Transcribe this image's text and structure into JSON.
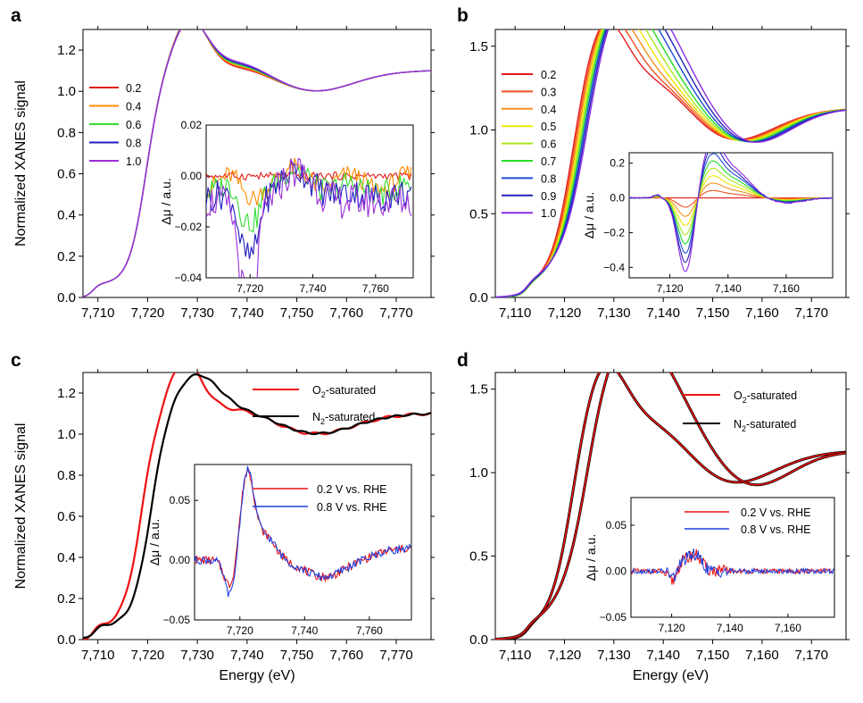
{
  "chart_data": [
    {
      "type": "line",
      "panel": "a",
      "xlabel": "",
      "ylabel": "Normalized XANES signal",
      "xlim": [
        7707,
        7777
      ],
      "ylim": [
        0,
        1.3
      ],
      "xticks": [
        7710,
        7720,
        7730,
        7740,
        7750,
        7760,
        7770
      ],
      "xtick_labels": [
        "7,710",
        "7,720",
        "7,730",
        "7,740",
        "7,750",
        "7,760",
        "7,770"
      ],
      "yticks": [
        0.0,
        0.2,
        0.4,
        0.6,
        0.8,
        1.0,
        1.2
      ],
      "ytick_labels": [
        "0.0",
        "0.2",
        "0.4",
        "0.6",
        "0.8",
        "1.0",
        "1.2"
      ],
      "legend_position": "left",
      "series": [
        {
          "name": "0.2",
          "color": "#e41a1c",
          "variant": 0
        },
        {
          "name": "0.4",
          "color": "#ff8c00",
          "variant": 0.25
        },
        {
          "name": "0.6",
          "color": "#33dd33",
          "variant": 0.5
        },
        {
          "name": "0.8",
          "color": "#1f1fbf",
          "variant": 0.75
        },
        {
          "name": "1.0",
          "color": "#9b30d9",
          "variant": 1
        }
      ],
      "inset": {
        "ylabel": "Δμ / a.u.",
        "xlim": [
          7706,
          7772
        ],
        "ylim": [
          -0.04,
          0.02
        ],
        "xticks": [
          7720,
          7740,
          7760
        ],
        "xtick_labels": [
          "7,720",
          "7,740",
          "7,760"
        ],
        "yticks": [
          -0.04,
          -0.02,
          0.0,
          0.02
        ],
        "ytick_labels": [
          "−0.04",
          "−0.02",
          "0.00",
          "0.02"
        ]
      }
    },
    {
      "type": "line",
      "panel": "b",
      "xlabel": "",
      "ylabel": "",
      "xlim": [
        7106,
        7177
      ],
      "ylim": [
        0,
        1.6
      ],
      "xticks": [
        7110,
        7120,
        7130,
        7140,
        7150,
        7160,
        7170
      ],
      "xtick_labels": [
        "7,110",
        "7,120",
        "7,130",
        "7,140",
        "7,150",
        "7,160",
        "7,170"
      ],
      "yticks": [
        0.0,
        0.5,
        1.0,
        1.5
      ],
      "ytick_labels": [
        "0.0",
        "0.5",
        "1.0",
        "1.5"
      ],
      "legend_position": "left",
      "series": [
        {
          "name": "0.2",
          "color": "#e41a1c",
          "variant": 0
        },
        {
          "name": "0.3",
          "color": "#f0501e",
          "variant": 0.125
        },
        {
          "name": "0.4",
          "color": "#f5901c",
          "variant": 0.25
        },
        {
          "name": "0.5",
          "color": "#f2e600",
          "variant": 0.375
        },
        {
          "name": "0.6",
          "color": "#a8e81e",
          "variant": 0.5
        },
        {
          "name": "0.7",
          "color": "#22dd22",
          "variant": 0.625
        },
        {
          "name": "0.8",
          "color": "#1d4bd6",
          "variant": 0.75
        },
        {
          "name": "0.9",
          "color": "#2323b8",
          "variant": 0.875
        },
        {
          "name": "1.0",
          "color": "#8a2be2",
          "variant": 1
        }
      ],
      "inset": {
        "ylabel": "Δμ / a.u.",
        "xlim": [
          7106,
          7176
        ],
        "ylim": [
          -0.46,
          0.26
        ],
        "xticks": [
          7120,
          7140,
          7160
        ],
        "xtick_labels": [
          "7,120",
          "7,140",
          "7,160"
        ],
        "yticks": [
          -0.4,
          -0.2,
          0.0,
          0.2
        ],
        "ytick_labels": [
          "−0.4",
          "−0.2",
          "0.0",
          "0.2"
        ]
      }
    },
    {
      "type": "line",
      "panel": "c",
      "xlabel": "Energy (eV)",
      "ylabel": "Normalized XANES signal",
      "xlim": [
        7707,
        7777
      ],
      "ylim": [
        0,
        1.3
      ],
      "xticks": [
        7710,
        7720,
        7730,
        7740,
        7750,
        7760,
        7770
      ],
      "xtick_labels": [
        "7,710",
        "7,720",
        "7,730",
        "7,740",
        "7,750",
        "7,760",
        "7,770"
      ],
      "yticks": [
        0.0,
        0.2,
        0.4,
        0.6,
        0.8,
        1.0,
        1.2
      ],
      "ytick_labels": [
        "0.0",
        "0.2",
        "0.4",
        "0.6",
        "0.8",
        "1.0",
        "1.2"
      ],
      "legend_position": "top-right",
      "series": [
        {
          "name_main": "O",
          "name_sub": "2",
          "name_rest": "-saturated",
          "color": "#ee1111"
        },
        {
          "name_main": "N",
          "name_sub": "2",
          "name_rest": "-saturated",
          "color": "#000000"
        }
      ],
      "inset": {
        "ylabel": "Δμ / a.u.",
        "xlim": [
          7706,
          7773
        ],
        "ylim": [
          -0.05,
          0.08
        ],
        "xticks": [
          7720,
          7740,
          7760
        ],
        "xtick_labels": [
          "7,720",
          "7,740",
          "7,760"
        ],
        "yticks": [
          -0.05,
          0.0,
          0.05
        ],
        "ytick_labels": [
          "−0.05",
          "0.00",
          "0.05"
        ],
        "series": [
          {
            "name": "0.2 V vs. RHE",
            "color": "#ee1111"
          },
          {
            "name": "0.8 V vs. RHE",
            "color": "#1f3fe0"
          }
        ]
      }
    },
    {
      "type": "line",
      "panel": "d",
      "xlabel": "Energy (eV)",
      "ylabel": "",
      "xlim": [
        7106,
        7177
      ],
      "ylim": [
        0,
        1.6
      ],
      "xticks": [
        7110,
        7120,
        7130,
        7140,
        7150,
        7160,
        7170
      ],
      "xtick_labels": [
        "7,110",
        "7,120",
        "7,130",
        "7,140",
        "7,150",
        "7,160",
        "7,170"
      ],
      "yticks": [
        0.0,
        0.5,
        1.0,
        1.5
      ],
      "ytick_labels": [
        "0.0",
        "0.5",
        "1.0",
        "1.5"
      ],
      "legend_position": "top-right",
      "series": [
        {
          "name_main": "O",
          "name_sub": "2",
          "name_rest": "-saturated",
          "color": "#ee1111"
        },
        {
          "name_main": "N",
          "name_sub": "2",
          "name_rest": "-saturated",
          "color": "#000000"
        }
      ],
      "inset": {
        "ylabel": "Δμ / a.u.",
        "xlim": [
          7106,
          7176
        ],
        "ylim": [
          -0.05,
          0.08
        ],
        "xticks": [
          7120,
          7140,
          7160
        ],
        "xtick_labels": [
          "7,120",
          "7,140",
          "7,160"
        ],
        "yticks": [
          -0.05,
          0.0,
          0.05
        ],
        "ytick_labels": [
          "−0.05",
          "0.00",
          "0.05"
        ],
        "series": [
          {
            "name": "0.2 V vs. RHE",
            "color": "#ee1111"
          },
          {
            "name": "0.8 V vs. RHE",
            "color": "#1f3fe0"
          }
        ]
      }
    }
  ]
}
